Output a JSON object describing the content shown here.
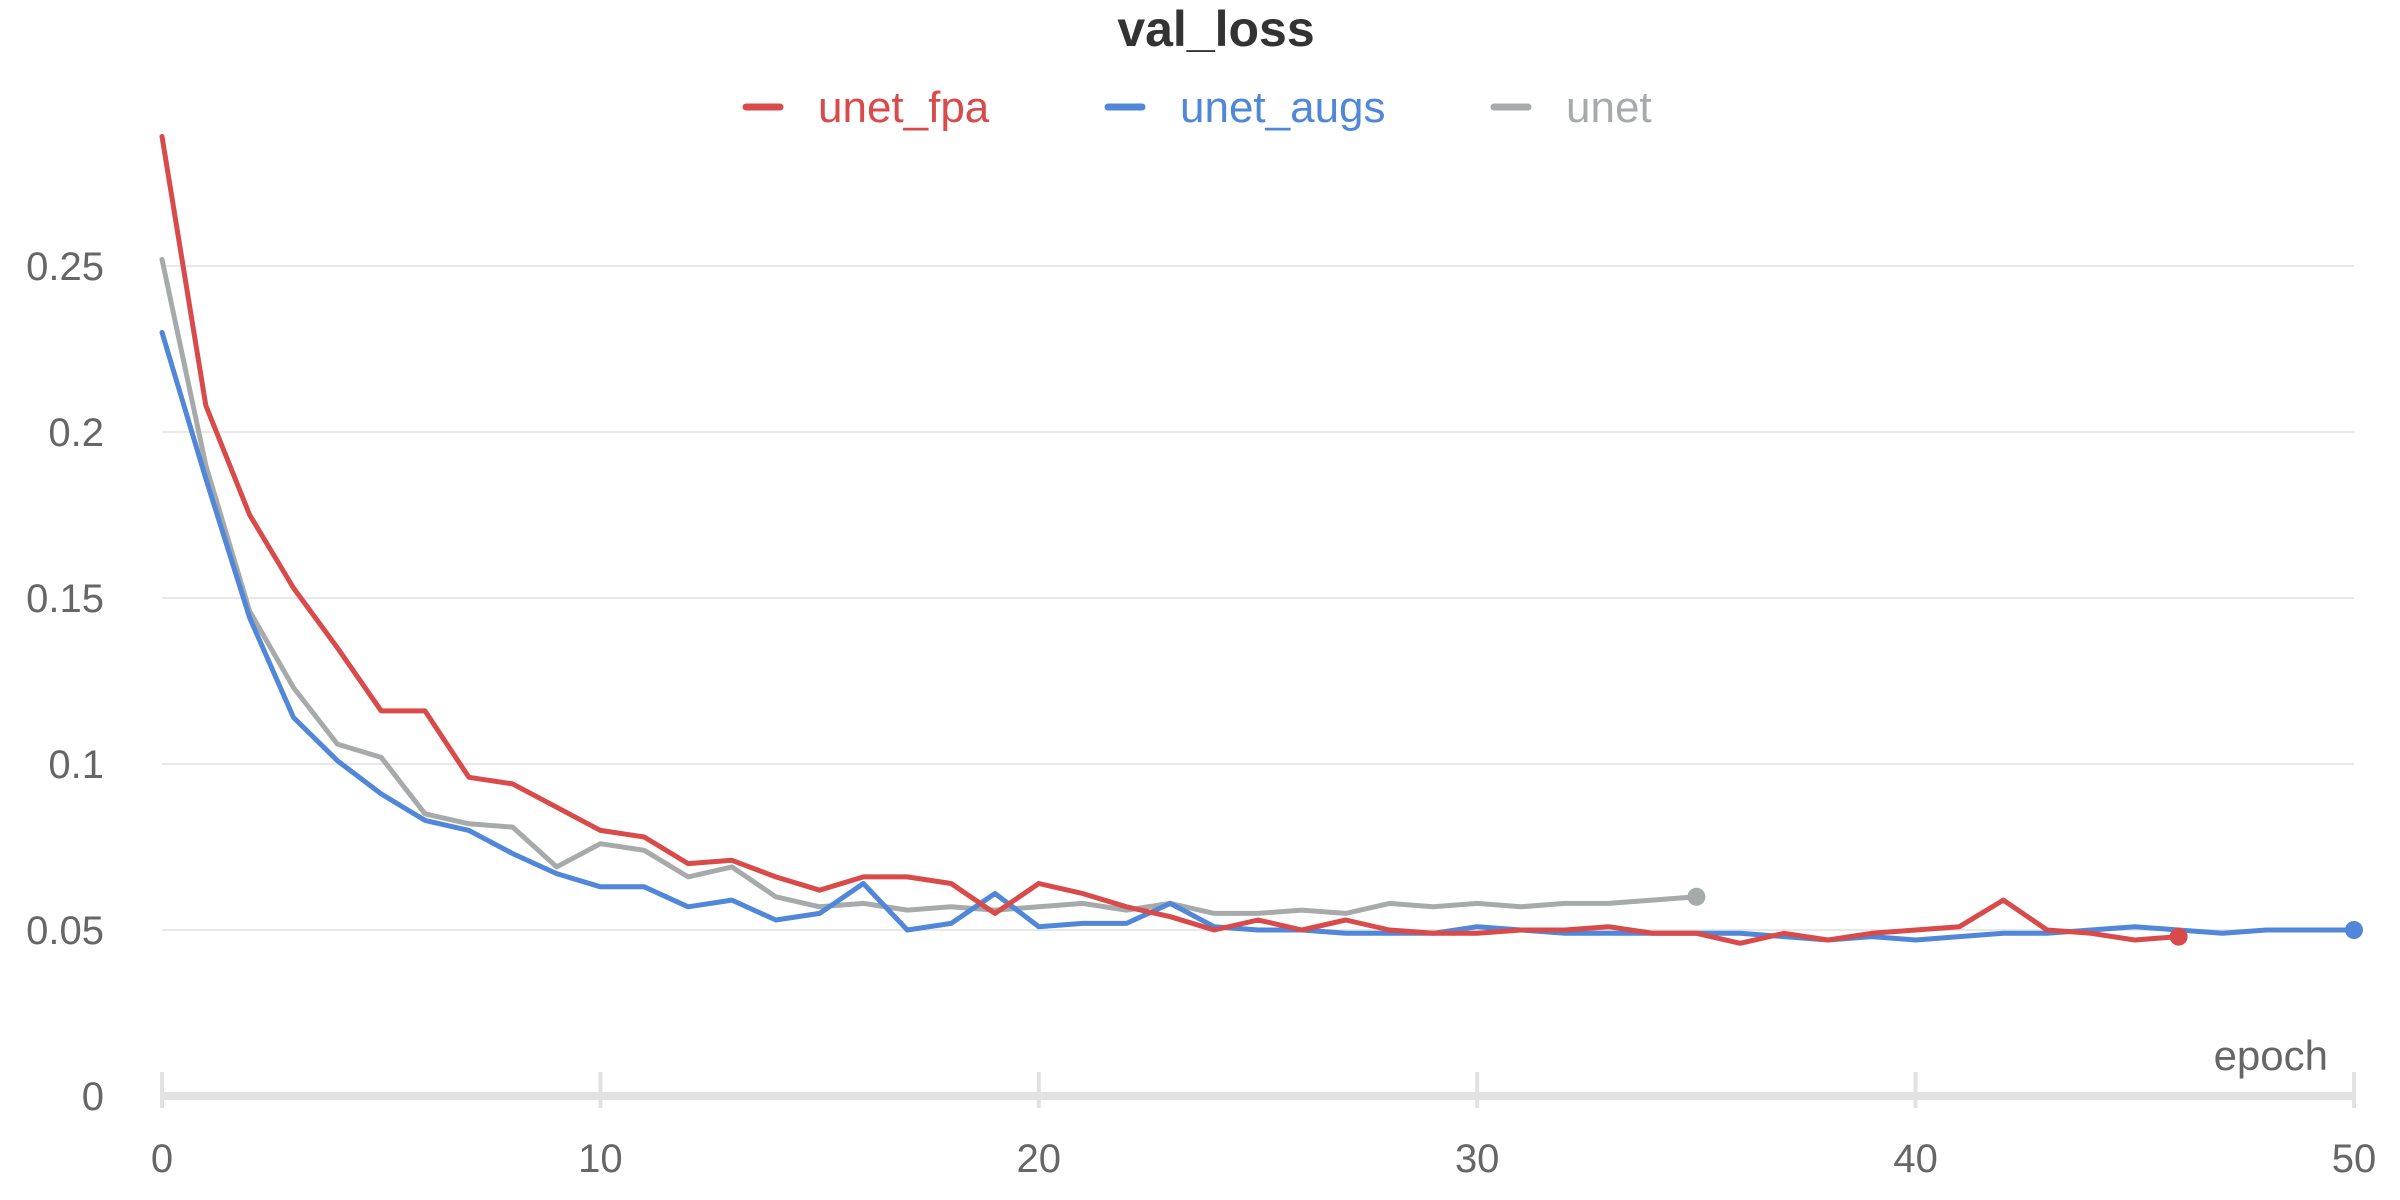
{
  "chart_data": {
    "type": "line",
    "title": "val_loss",
    "xlabel": "epoch",
    "ylabel": "",
    "xlim": [
      0,
      50
    ],
    "ylim": [
      0,
      0.3
    ],
    "x_ticks": [
      "0",
      "10",
      "20",
      "30",
      "40",
      "50"
    ],
    "y_ticks": [
      "0",
      "0.05",
      "0.1",
      "0.15",
      "0.2",
      "0.25"
    ],
    "grid": true,
    "legend_position": "top-center",
    "series": [
      {
        "name": "unet_fpa",
        "color": "#d94a4a",
        "x": [
          0,
          1,
          2,
          3,
          4,
          5,
          6,
          7,
          8,
          9,
          10,
          11,
          12,
          13,
          14,
          15,
          16,
          17,
          18,
          19,
          20,
          21,
          22,
          23,
          24,
          25,
          26,
          27,
          28,
          29,
          30,
          31,
          32,
          33,
          34,
          35,
          36,
          37,
          38,
          39,
          40,
          41,
          42,
          43,
          44,
          45,
          46
        ],
        "y": [
          0.289,
          0.208,
          0.175,
          0.153,
          0.135,
          0.116,
          0.116,
          0.096,
          0.094,
          0.087,
          0.08,
          0.078,
          0.07,
          0.071,
          0.066,
          0.062,
          0.066,
          0.066,
          0.064,
          0.055,
          0.064,
          0.061,
          0.057,
          0.054,
          0.05,
          0.053,
          0.05,
          0.053,
          0.05,
          0.049,
          0.049,
          0.05,
          0.05,
          0.051,
          0.049,
          0.049,
          0.046,
          0.049,
          0.047,
          0.049,
          0.05,
          0.051,
          0.059,
          0.05,
          0.049,
          0.047,
          0.048
        ]
      },
      {
        "name": "unet_augs",
        "color": "#5087d8",
        "x": [
          0,
          1,
          2,
          3,
          4,
          5,
          6,
          7,
          8,
          9,
          10,
          11,
          12,
          13,
          14,
          15,
          16,
          17,
          18,
          19,
          20,
          21,
          22,
          23,
          24,
          25,
          26,
          27,
          28,
          29,
          30,
          31,
          32,
          33,
          34,
          35,
          36,
          37,
          38,
          39,
          40,
          41,
          42,
          43,
          44,
          45,
          46,
          47,
          48,
          49,
          50
        ],
        "y": [
          0.23,
          0.186,
          0.144,
          0.114,
          0.101,
          0.091,
          0.083,
          0.08,
          0.073,
          0.067,
          0.063,
          0.063,
          0.057,
          0.059,
          0.053,
          0.055,
          0.064,
          0.05,
          0.052,
          0.061,
          0.051,
          0.052,
          0.052,
          0.058,
          0.051,
          0.05,
          0.05,
          0.049,
          0.049,
          0.049,
          0.051,
          0.05,
          0.049,
          0.049,
          0.049,
          0.049,
          0.049,
          0.048,
          0.047,
          0.048,
          0.047,
          0.048,
          0.049,
          0.049,
          0.05,
          0.051,
          0.05,
          0.049,
          0.05,
          0.05,
          0.05
        ]
      },
      {
        "name": "unet",
        "color": "#a7aaab",
        "x": [
          0,
          1,
          2,
          3,
          4,
          5,
          6,
          7,
          8,
          9,
          10,
          11,
          12,
          13,
          14,
          15,
          16,
          17,
          18,
          19,
          20,
          21,
          22,
          23,
          24,
          25,
          26,
          27,
          28,
          29,
          30,
          31,
          32,
          33,
          34,
          35
        ],
        "y": [
          0.252,
          0.19,
          0.146,
          0.123,
          0.106,
          0.102,
          0.085,
          0.082,
          0.081,
          0.069,
          0.076,
          0.074,
          0.066,
          0.069,
          0.06,
          0.057,
          0.058,
          0.056,
          0.057,
          0.056,
          0.057,
          0.058,
          0.056,
          0.058,
          0.055,
          0.055,
          0.056,
          0.055,
          0.058,
          0.057,
          0.058,
          0.057,
          0.058,
          0.058,
          0.059,
          0.06
        ]
      }
    ]
  }
}
